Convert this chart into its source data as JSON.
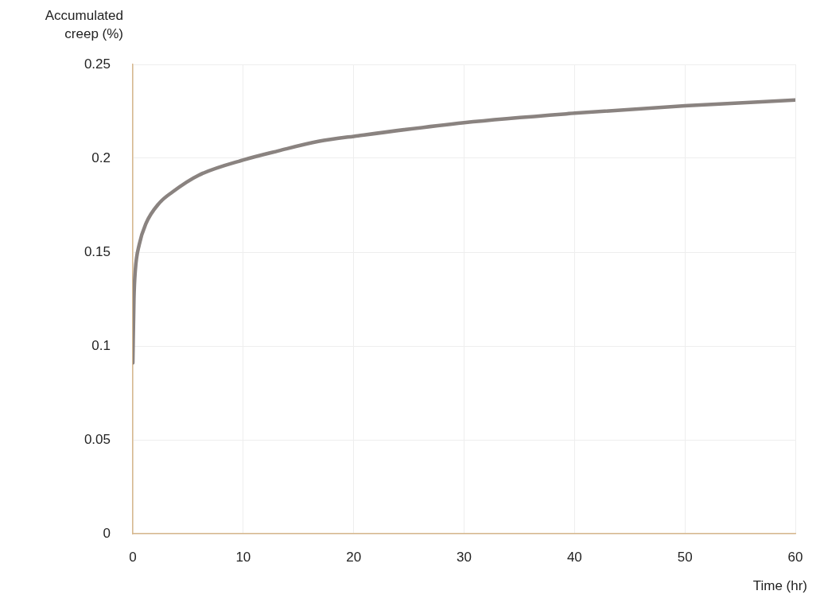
{
  "chart_data": {
    "type": "line",
    "xlabel": "Time (hr)",
    "ylabel": "Accumulated creep (%)",
    "series": [
      {
        "color": "#8a8380",
        "x": [
          0,
          0.1,
          0.22,
          0.58,
          1.17,
          2.38,
          3.58,
          5.98,
          9.94,
          13.2,
          16.8,
          20.4,
          30,
          40,
          50,
          60
        ],
        "values": [
          0.091,
          0.125,
          0.14,
          0.154,
          0.165,
          0.176,
          0.182,
          0.191,
          0.199,
          0.204,
          0.209,
          0.212,
          0.219,
          0.224,
          0.228,
          0.231
        ]
      }
    ],
    "xlim": [
      0,
      60
    ],
    "xticks": [
      0,
      10,
      20,
      30,
      40,
      50,
      60
    ],
    "ylim": [
      0,
      0.25
    ],
    "yticks": [
      0,
      0.05,
      0.1,
      0.15,
      0.2,
      0.25
    ],
    "grid": true,
    "legend": false,
    "marker": "none",
    "line_style": "solid"
  }
}
